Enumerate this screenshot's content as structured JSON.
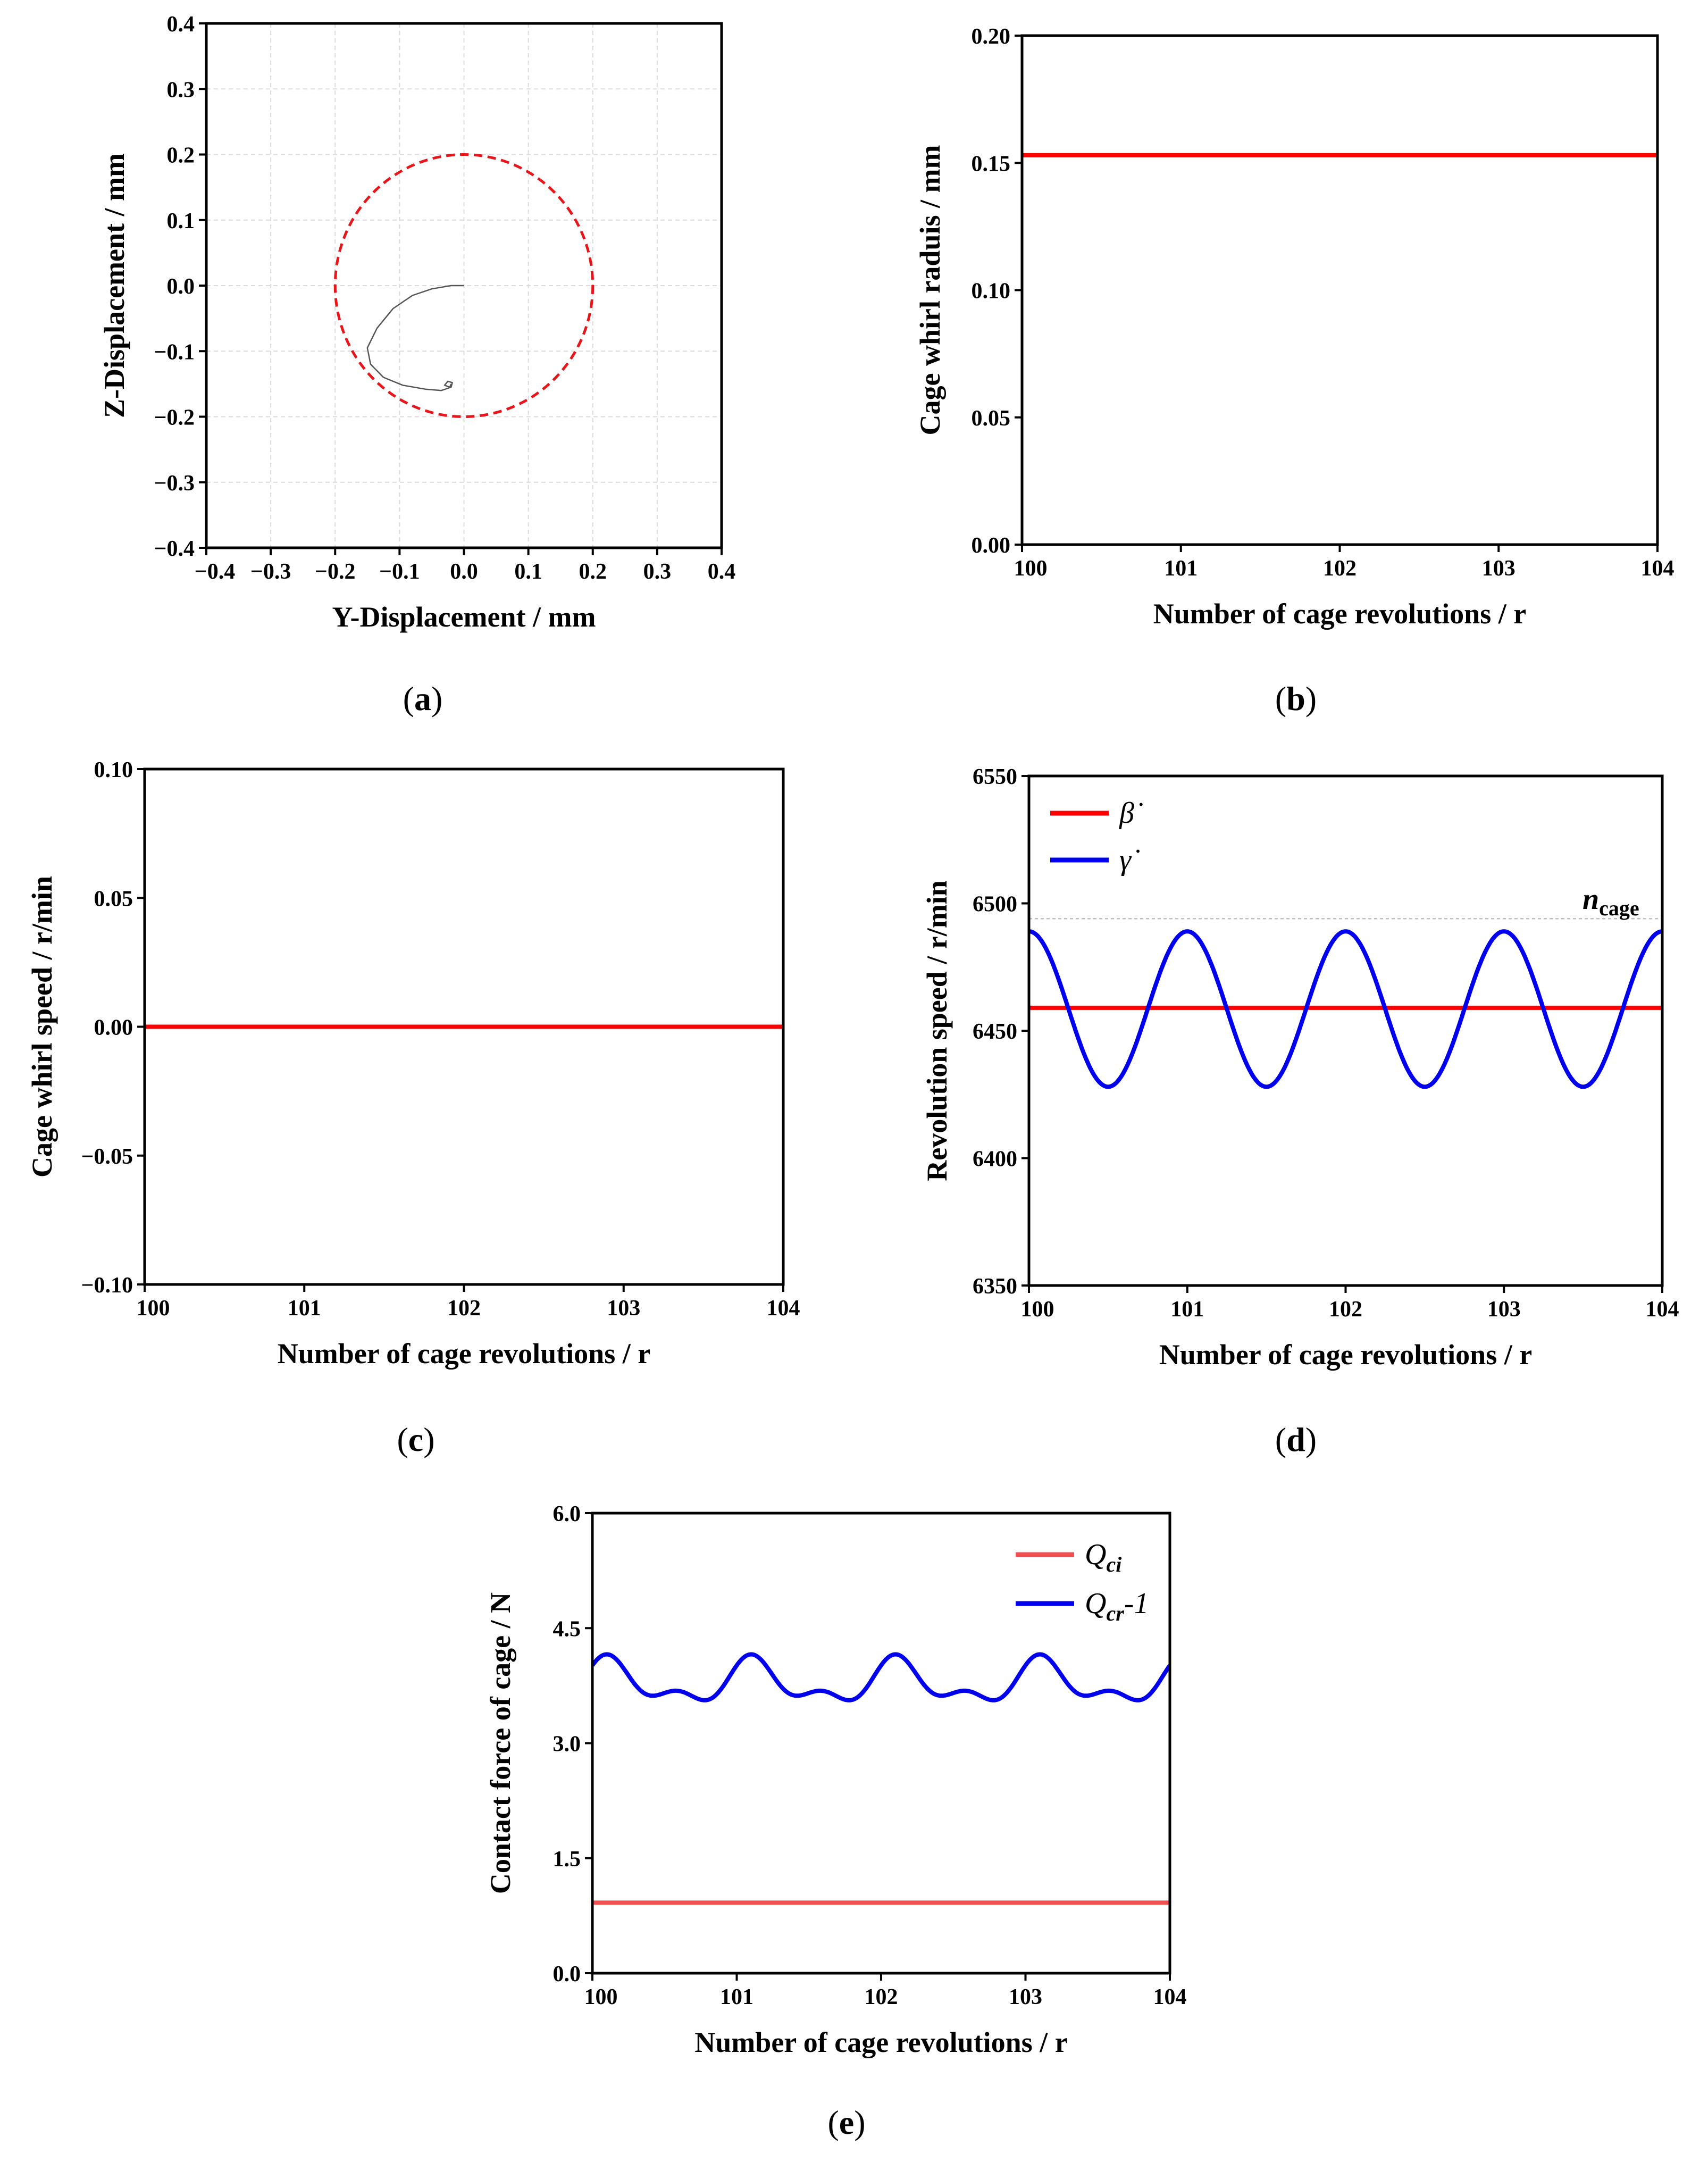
{
  "chart_data": [
    {
      "id": "a",
      "type": "line",
      "caption": "a",
      "xlabel": "Y-Displacement / mm",
      "ylabel": "Z-Displacement / mm",
      "xlim": [
        -0.4,
        0.4
      ],
      "ylim": [
        -0.4,
        0.4
      ],
      "xticks": [
        -0.4,
        -0.3,
        -0.2,
        -0.1,
        0.0,
        0.1,
        0.2,
        0.3,
        0.4
      ],
      "yticks": [
        -0.4,
        -0.3,
        -0.2,
        -0.1,
        0.0,
        0.1,
        0.2,
        0.3,
        0.4
      ],
      "xticklabels": [
        "−0.4",
        "−0.3",
        "−0.2",
        "−0.1",
        "0.0",
        "0.1",
        "0.2",
        "0.3",
        "0.4"
      ],
      "yticklabels": [
        "−0.4",
        "−0.3",
        "−0.2",
        "−0.1",
        "0.0",
        "0.1",
        "0.2",
        "0.3",
        "0.4"
      ],
      "grid": true,
      "clearance_circle": {
        "center": [
          0,
          0
        ],
        "radius": 0.2,
        "color": "#e8161b",
        "style": "dashed"
      },
      "series": [
        {
          "color": "#555555",
          "points": [
            [
              0.0,
              0.0
            ],
            [
              -0.02,
              0.0
            ],
            [
              -0.05,
              -0.005
            ],
            [
              -0.08,
              -0.015
            ],
            [
              -0.11,
              -0.035
            ],
            [
              -0.135,
              -0.065
            ],
            [
              -0.15,
              -0.095
            ],
            [
              -0.145,
              -0.12
            ],
            [
              -0.125,
              -0.14
            ],
            [
              -0.095,
              -0.152
            ],
            [
              -0.06,
              -0.158
            ],
            [
              -0.035,
              -0.16
            ],
            [
              -0.02,
              -0.155
            ],
            [
              -0.018,
              -0.148
            ],
            [
              -0.025,
              -0.146
            ],
            [
              -0.03,
              -0.152
            ],
            [
              -0.022,
              -0.155
            ],
            [
              -0.02,
              -0.15
            ]
          ]
        }
      ]
    },
    {
      "id": "b",
      "type": "line",
      "caption": "b",
      "xlabel": "Number of cage revolutions / r",
      "ylabel": "Cage whirl raduis / mm",
      "xlim": [
        100,
        104
      ],
      "ylim": [
        0.0,
        0.2
      ],
      "xticks": [
        100,
        101,
        102,
        103,
        104
      ],
      "yticks": [
        0.0,
        0.05,
        0.1,
        0.15,
        0.2
      ],
      "xticklabels": [
        "100",
        "101",
        "102",
        "103",
        "104"
      ],
      "yticklabels": [
        "0.00",
        "0.05",
        "0.10",
        "0.15",
        "0.20"
      ],
      "series": [
        {
          "color": "#ff0000",
          "x": [
            100,
            104
          ],
          "y": [
            0.153,
            0.153
          ]
        }
      ]
    },
    {
      "id": "c",
      "type": "line",
      "caption": "c",
      "xlabel": "Number of cage revolutions / r",
      "ylabel": "Cage whirl speed / r/min",
      "xlim": [
        100,
        104
      ],
      "ylim": [
        -0.1,
        0.1
      ],
      "xticks": [
        100,
        101,
        102,
        103,
        104
      ],
      "yticks": [
        -0.1,
        -0.05,
        0.0,
        0.05,
        0.1
      ],
      "xticklabels": [
        "100",
        "101",
        "102",
        "103",
        "104"
      ],
      "yticklabels": [
        "−0.10",
        "−0.05",
        "0.00",
        "0.05",
        "0.10"
      ],
      "series": [
        {
          "color": "#ff0000",
          "x": [
            100,
            104
          ],
          "y": [
            0.0,
            0.0
          ]
        }
      ]
    },
    {
      "id": "d",
      "type": "line",
      "caption": "d",
      "xlabel": "Number of cage revolutions / r",
      "ylabel": "Revolution speed / r/min",
      "xlim": [
        100,
        104
      ],
      "ylim": [
        6350,
        6550
      ],
      "xticks": [
        100,
        101,
        102,
        103,
        104
      ],
      "yticks": [
        6350,
        6400,
        6450,
        6500,
        6550
      ],
      "xticklabels": [
        "100",
        "101",
        "102",
        "103",
        "104"
      ],
      "yticklabels": [
        "6350",
        "6400",
        "6450",
        "6500",
        "6550"
      ],
      "legend": "top-left",
      "annotation": {
        "text": "n",
        "subscript": "cage",
        "y": 6494
      },
      "series": [
        {
          "name": "β̇",
          "color": "#ff0000",
          "formula": "constant",
          "value": 6459
        },
        {
          "name": "γ̇",
          "color": "#0000ee",
          "formula": "sine",
          "mean": 6458.5,
          "amplitude": 30.5,
          "period": 1.0,
          "peak_at": 101.0
        }
      ]
    },
    {
      "id": "e",
      "type": "line",
      "caption": "e",
      "xlabel": "Number of cage revolutions / r",
      "ylabel": "Contact force of cage / N",
      "xlim": [
        100,
        104
      ],
      "ylim": [
        0.0,
        6.0
      ],
      "xticks": [
        100,
        101,
        102,
        103,
        104
      ],
      "yticks": [
        0.0,
        1.5,
        3.0,
        4.5,
        6.0
      ],
      "xticklabels": [
        "100",
        "101",
        "102",
        "103",
        "104"
      ],
      "yticklabels": [
        "0.0",
        "1.5",
        "3.0",
        "4.5",
        "6.0"
      ],
      "legend": "top-right",
      "series": [
        {
          "name": "Q",
          "subscript": "ci",
          "color": "#f05050",
          "formula": "constant",
          "value": 0.92
        },
        {
          "name": "Q",
          "subscript": "cr",
          "suffix": "-1",
          "color": "#0000ee",
          "formula": "two-sine",
          "mean": 3.78,
          "a1": 0.24,
          "p1": 1.0,
          "ph1": 0.85,
          "a2": 0.14,
          "p2": 0.5,
          "ph2": 0.4
        }
      ]
    }
  ]
}
